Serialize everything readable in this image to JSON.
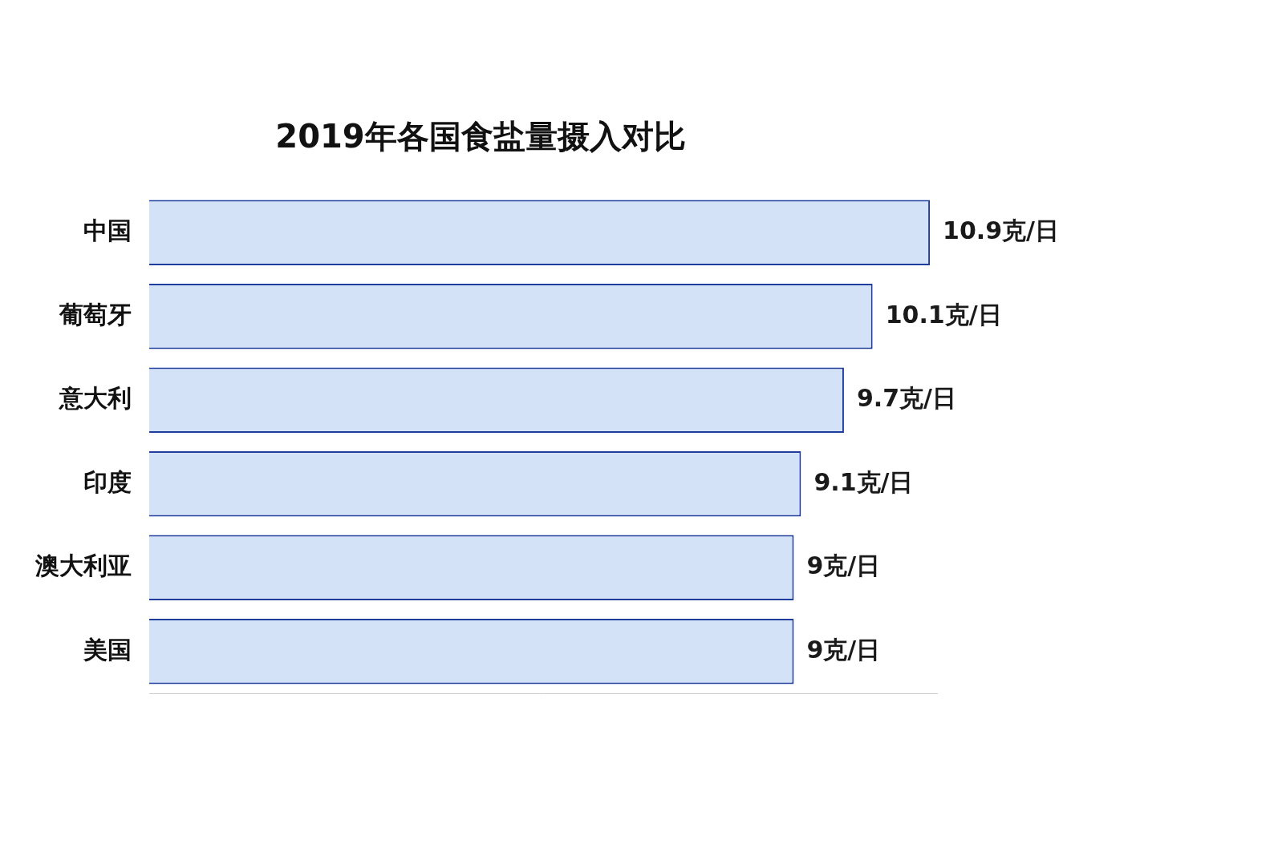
{
  "chart_data": {
    "type": "bar",
    "title": "2019年各国食盐量摄入对比",
    "orientation": "horizontal",
    "categories": [
      "中国",
      "葡萄牙",
      "意大利",
      "印度",
      "澳大利亚",
      "美国"
    ],
    "values": [
      10.9,
      10.1,
      9.7,
      9.1,
      9,
      9
    ],
    "value_labels": [
      "10.9克/日",
      "10.1克/日",
      "9.7克/日",
      "9.1克/日",
      "9克/日",
      "9克/日"
    ],
    "data_labels": true,
    "color": "#d3e2f6",
    "xlim": [
      0,
      11
    ],
    "tick_labels": "y",
    "grid": false
  }
}
